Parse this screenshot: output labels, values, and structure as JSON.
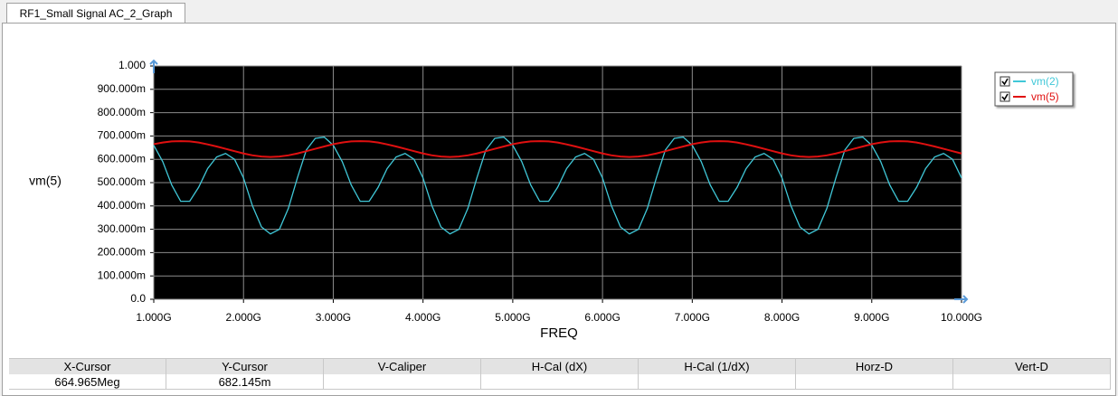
{
  "tab_label": "RF1_Small Signal AC_2_Graph",
  "chart_data": {
    "type": "line",
    "y_label": "vm(5)",
    "x_label": "FREQ",
    "xlim": [
      1000000000.0,
      10000000000.0
    ],
    "xticks": [
      {
        "value": 1000000000.0,
        "label": "1.000G"
      },
      {
        "value": 2000000000.0,
        "label": "2.000G"
      },
      {
        "value": 3000000000.0,
        "label": "3.000G"
      },
      {
        "value": 4000000000.0,
        "label": "4.000G"
      },
      {
        "value": 5000000000.0,
        "label": "5.000G"
      },
      {
        "value": 6000000000.0,
        "label": "6.000G"
      },
      {
        "value": 7000000000.0,
        "label": "7.000G"
      },
      {
        "value": 8000000000.0,
        "label": "8.000G"
      },
      {
        "value": 9000000000.0,
        "label": "9.000G"
      },
      {
        "value": 10000000000.0,
        "label": "10.000G"
      }
    ],
    "ylim": [
      0,
      1
    ],
    "yticks": [
      {
        "value": 0,
        "label": "0.0"
      },
      {
        "value": 0.1,
        "label": "100.000m"
      },
      {
        "value": 0.2,
        "label": "200.000m"
      },
      {
        "value": 0.3,
        "label": "300.000m"
      },
      {
        "value": 0.4,
        "label": "400.000m"
      },
      {
        "value": 0.5,
        "label": "500.000m"
      },
      {
        "value": 0.6,
        "label": "600.000m"
      },
      {
        "value": 0.7,
        "label": "700.000m"
      },
      {
        "value": 0.8,
        "label": "800.000m"
      },
      {
        "value": 0.9,
        "label": "900.000m"
      },
      {
        "value": 1,
        "label": "1.000"
      }
    ],
    "grid": true,
    "legend": "right",
    "x": [
      1000000000.0,
      1100000000.0,
      1200000000.0,
      1300000000.0,
      1400000000.0,
      1500000000.0,
      1600000000.0,
      1700000000.0,
      1800000000.0,
      1900000000.0,
      2000000000.0,
      2100000000.0,
      2200000000.0,
      2300000000.0,
      2400000000.0,
      2500000000.0,
      2600000000.0,
      2700000000.0,
      2800000000.0,
      2900000000.0,
      3000000000.0,
      3100000000.0,
      3200000000.0,
      3300000000.0,
      3400000000.0,
      3500000000.0,
      3600000000.0,
      3700000000.0,
      3800000000.0,
      3900000000.0,
      4000000000.0,
      4100000000.0,
      4200000000.0,
      4300000000.0,
      4400000000.0,
      4500000000.0,
      4600000000.0,
      4700000000.0,
      4800000000.0,
      4900000000.0,
      5000000000.0,
      5100000000.0,
      5200000000.0,
      5300000000.0,
      5400000000.0,
      5500000000.0,
      5600000000.0,
      5700000000.0,
      5800000000.0,
      5900000000.0,
      6000000000.0,
      6100000000.0,
      6200000000.0,
      6300000000.0,
      6400000000.0,
      6500000000.0,
      6600000000.0,
      6700000000.0,
      6800000000.0,
      6900000000.0,
      7000000000.0,
      7100000000.0,
      7200000000.0,
      7300000000.0,
      7400000000.0,
      7500000000.0,
      7600000000.0,
      7700000000.0,
      7800000000.0,
      7900000000.0,
      8000000000.0,
      8100000000.0,
      8200000000.0,
      8300000000.0,
      8400000000.0,
      8500000000.0,
      8600000000.0,
      8700000000.0,
      8800000000.0,
      8900000000.0,
      9000000000.0,
      9100000000.0,
      9200000000.0,
      9300000000.0,
      9400000000.0,
      9500000000.0,
      9600000000.0,
      9700000000.0,
      9800000000.0,
      9900000000.0,
      10000000000.0
    ],
    "series": [
      {
        "name": "vm(2)",
        "color": "#40c8d8",
        "values": [
          0.66,
          0.59,
          0.49,
          0.42,
          0.42,
          0.48,
          0.56,
          0.61,
          0.625,
          0.6,
          0.52,
          0.4,
          0.31,
          0.28,
          0.3,
          0.39,
          0.52,
          0.64,
          0.69,
          0.695,
          0.66,
          0.59,
          0.49,
          0.42,
          0.42,
          0.48,
          0.56,
          0.61,
          0.625,
          0.6,
          0.52,
          0.4,
          0.31,
          0.28,
          0.3,
          0.39,
          0.52,
          0.64,
          0.69,
          0.695,
          0.66,
          0.59,
          0.49,
          0.42,
          0.42,
          0.48,
          0.56,
          0.61,
          0.625,
          0.6,
          0.52,
          0.4,
          0.31,
          0.28,
          0.3,
          0.39,
          0.52,
          0.64,
          0.69,
          0.695,
          0.66,
          0.59,
          0.49,
          0.42,
          0.42,
          0.48,
          0.56,
          0.61,
          0.625,
          0.6,
          0.52,
          0.4,
          0.31,
          0.28,
          0.3,
          0.39,
          0.52,
          0.64,
          0.69,
          0.695,
          0.66,
          0.59,
          0.49,
          0.42,
          0.42,
          0.48,
          0.56,
          0.61,
          0.625,
          0.6,
          0.52
        ]
      },
      {
        "name": "vm(5)",
        "color": "#e01010",
        "values": [
          0.665,
          0.672,
          0.677,
          0.678,
          0.677,
          0.672,
          0.664,
          0.655,
          0.645,
          0.635,
          0.625,
          0.617,
          0.612,
          0.61,
          0.612,
          0.617,
          0.625,
          0.635,
          0.645,
          0.655,
          0.665,
          0.672,
          0.677,
          0.678,
          0.677,
          0.672,
          0.664,
          0.655,
          0.645,
          0.635,
          0.625,
          0.617,
          0.612,
          0.61,
          0.612,
          0.617,
          0.625,
          0.635,
          0.645,
          0.655,
          0.665,
          0.672,
          0.677,
          0.678,
          0.677,
          0.672,
          0.664,
          0.655,
          0.645,
          0.635,
          0.625,
          0.617,
          0.612,
          0.61,
          0.612,
          0.617,
          0.625,
          0.635,
          0.645,
          0.655,
          0.665,
          0.672,
          0.677,
          0.678,
          0.677,
          0.672,
          0.664,
          0.655,
          0.645,
          0.635,
          0.625,
          0.617,
          0.612,
          0.61,
          0.612,
          0.617,
          0.625,
          0.635,
          0.645,
          0.655,
          0.665,
          0.672,
          0.677,
          0.678,
          0.677,
          0.672,
          0.664,
          0.655,
          0.645,
          0.635,
          0.625
        ]
      }
    ]
  },
  "cursor_table": {
    "headers": [
      "X-Cursor",
      "Y-Cursor",
      "V-Caliper",
      "H-Cal (dX)",
      "H-Cal (1/dX)",
      "Horz-D",
      "Vert-D"
    ],
    "values": [
      "664.965Meg",
      "682.145m"
    ]
  }
}
